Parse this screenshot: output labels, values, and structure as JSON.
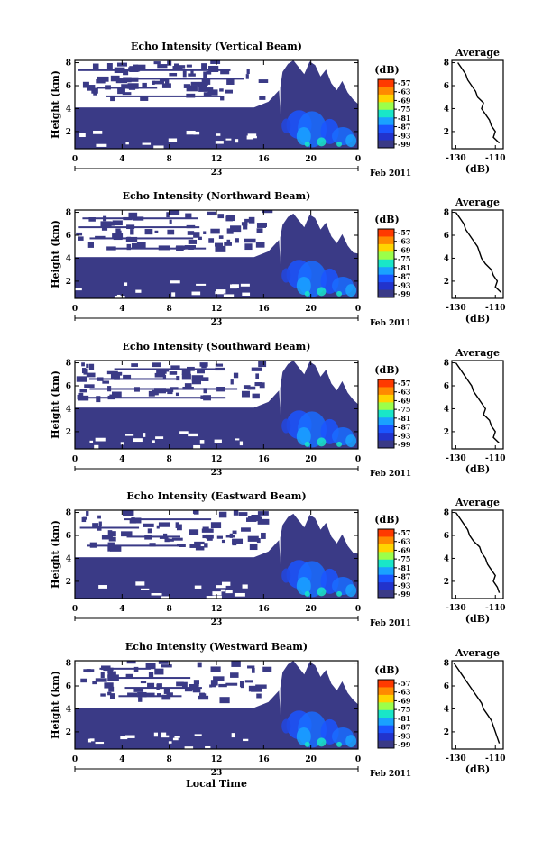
{
  "figure": {
    "date_label": "Feb 2011",
    "day_label": "23",
    "xlabel": "Local Time",
    "ylabel": "Height (km)",
    "colorbar_unit": "(dB)",
    "colorbar_ticks": [
      "-57",
      "-63",
      "-69",
      "-75",
      "-81",
      "-87",
      "-93",
      "-99"
    ],
    "colorbar_colors": [
      "#ff3a00",
      "#ff8a00",
      "#ffd400",
      "#9bff4a",
      "#19e6c8",
      "#1aa2ff",
      "#1b55ff",
      "#2233cc",
      "#3a3a86"
    ],
    "field_color": "#3a3a86",
    "avg_title": "Average",
    "avg_xlabel": "(dB)",
    "avg_xticks": [
      "-130",
      "-110"
    ]
  },
  "chart_data": [
    {
      "type": "heatmap",
      "title": "Echo Intensity (Vertical Beam)",
      "xlabel": "",
      "ylabel": "Height (km)",
      "xticks": [
        "0",
        "4",
        "8",
        "12",
        "16",
        "20",
        "0"
      ],
      "yticks": [
        "2",
        "4",
        "6",
        "8"
      ],
      "xlim": [
        0,
        24
      ],
      "ylim": [
        0.5,
        8.2
      ],
      "colorbar": {
        "label": "(dB)",
        "range": [
          -99,
          -57
        ]
      },
      "average_profile": {
        "title": "Average",
        "xlabel": "(dB)",
        "xlim": [
          -132,
          -106
        ],
        "ylim": [
          0.5,
          8.2
        ],
        "height_km": [
          8,
          7.5,
          7,
          6.5,
          6,
          5.5,
          5,
          4.5,
          4,
          3.5,
          3,
          2.5,
          2,
          1.5,
          1
        ],
        "values_db": [
          -129,
          -127,
          -125,
          -124,
          -122,
          -120,
          -119,
          -116,
          -117,
          -115,
          -113,
          -112,
          -110,
          -111,
          -108
        ]
      }
    },
    {
      "type": "heatmap",
      "title": "Echo Intensity (Northward Beam)",
      "xlabel": "",
      "ylabel": "Height (km)",
      "xticks": [
        "0",
        "4",
        "8",
        "12",
        "16",
        "20",
        "0"
      ],
      "yticks": [
        "2",
        "4",
        "6",
        "8"
      ],
      "xlim": [
        0,
        24
      ],
      "ylim": [
        0.5,
        8.2
      ],
      "colorbar": {
        "label": "(dB)",
        "range": [
          -99,
          -57
        ]
      },
      "average_profile": {
        "title": "Average",
        "xlabel": "(dB)",
        "xlim": [
          -132,
          -106
        ],
        "ylim": [
          0.5,
          8.2
        ],
        "height_km": [
          8,
          7.5,
          7,
          6.5,
          6,
          5.5,
          5,
          4.5,
          4,
          3.5,
          3,
          2.5,
          2,
          1.5,
          1
        ],
        "values_db": [
          -130,
          -128,
          -126,
          -125,
          -123,
          -121,
          -119,
          -118,
          -117,
          -115,
          -112,
          -111,
          -109,
          -110,
          -107
        ]
      }
    },
    {
      "type": "heatmap",
      "title": "Echo Intensity (Southward Beam)",
      "xlabel": "",
      "ylabel": "Height (km)",
      "xticks": [
        "0",
        "4",
        "8",
        "12",
        "16",
        "20",
        "0"
      ],
      "yticks": [
        "2",
        "4",
        "6",
        "8"
      ],
      "xlim": [
        0,
        24
      ],
      "ylim": [
        0.5,
        8.2
      ],
      "colorbar": {
        "label": "(dB)",
        "range": [
          -99,
          -57
        ]
      },
      "average_profile": {
        "title": "Average",
        "xlabel": "(dB)",
        "xlim": [
          -132,
          -106
        ],
        "ylim": [
          0.5,
          8.2
        ],
        "height_km": [
          8,
          7.5,
          7,
          6.5,
          6,
          5.5,
          5,
          4.5,
          4,
          3.5,
          3,
          2.5,
          2,
          1.5,
          1
        ],
        "values_db": [
          -130,
          -128,
          -126,
          -124,
          -122,
          -121,
          -119,
          -117,
          -115,
          -116,
          -113,
          -112,
          -110,
          -111,
          -108
        ]
      }
    },
    {
      "type": "heatmap",
      "title": "Echo Intensity (Eastward Beam)",
      "xlabel": "",
      "ylabel": "Height (km)",
      "xticks": [
        "0",
        "4",
        "8",
        "12",
        "16",
        "20",
        "0"
      ],
      "yticks": [
        "2",
        "4",
        "6",
        "8"
      ],
      "xlim": [
        0,
        24
      ],
      "ylim": [
        0.5,
        8.2
      ],
      "colorbar": {
        "label": "(dB)",
        "range": [
          -99,
          -57
        ]
      },
      "average_profile": {
        "title": "Average",
        "xlabel": "(dB)",
        "xlim": [
          -132,
          -106
        ],
        "ylim": [
          0.5,
          8.2
        ],
        "height_km": [
          8,
          7.5,
          7,
          6.5,
          6,
          5.5,
          5,
          4.5,
          4,
          3.5,
          3,
          2.5,
          2,
          1.5,
          1
        ],
        "values_db": [
          -130,
          -128,
          -126,
          -124,
          -123,
          -121,
          -118,
          -117,
          -115,
          -114,
          -112,
          -110,
          -111,
          -109,
          -108
        ]
      }
    },
    {
      "type": "heatmap",
      "title": "Echo Intensity (Westward Beam)",
      "xlabel": "Local Time",
      "ylabel": "Height (km)",
      "xticks": [
        "0",
        "4",
        "8",
        "12",
        "16",
        "20",
        "0"
      ],
      "yticks": [
        "2",
        "4",
        "6",
        "8"
      ],
      "xlim": [
        0,
        24
      ],
      "ylim": [
        0.5,
        8.2
      ],
      "colorbar": {
        "label": "(dB)",
        "range": [
          -99,
          -57
        ]
      },
      "average_profile": {
        "title": "Average",
        "xlabel": "(dB)",
        "xlim": [
          -132,
          -106
        ],
        "ylim": [
          0.5,
          8.2
        ],
        "height_km": [
          8,
          7.5,
          7,
          6.5,
          6,
          5.5,
          5,
          4.5,
          4,
          3.5,
          3,
          2.5,
          2,
          1.5,
          1
        ],
        "values_db": [
          -131,
          -129,
          -127,
          -125,
          -123,
          -121,
          -119,
          -117,
          -116,
          -114,
          -112,
          -111,
          -110,
          -109,
          -108
        ]
      }
    }
  ]
}
